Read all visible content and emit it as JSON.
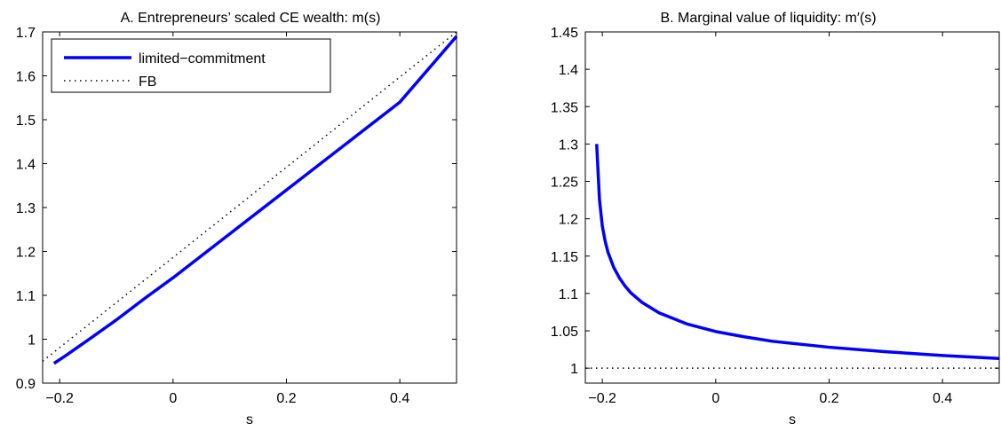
{
  "chart_data": [
    {
      "type": "line",
      "title": "A. Entrepreneurs’ scaled CE wealth: m(s)",
      "xlabel": "s",
      "ylabel": "",
      "xlim": [
        -0.23,
        0.5
      ],
      "ylim": [
        0.9,
        1.7
      ],
      "xticks": [
        -0.2,
        0,
        0.2,
        0.4
      ],
      "xtick_labels": [
        "−0.2",
        "0",
        "0.2",
        "0.4"
      ],
      "yticks": [
        0.9,
        1.0,
        1.1,
        1.2,
        1.3,
        1.4,
        1.5,
        1.6,
        1.7
      ],
      "ytick_labels": [
        "0.9",
        "1",
        "1.1",
        "1.2",
        "1.3",
        "1.4",
        "1.5",
        "1.6",
        "1.7"
      ],
      "grid": false,
      "legend": "top-left",
      "series": [
        {
          "name": "limited−commitment",
          "color": "#0000ff",
          "style": "solid",
          "x": [
            -0.21,
            -0.19,
            -0.15,
            -0.1,
            -0.05,
            0.0,
            0.1,
            0.2,
            0.3,
            0.4,
            0.5
          ],
          "y": [
            0.945,
            0.962,
            0.998,
            1.044,
            1.093,
            1.14,
            1.24,
            1.34,
            1.44,
            1.54,
            1.69
          ]
        },
        {
          "name": "FB",
          "color": "#000000",
          "style": "dotted",
          "x": [
            -0.23,
            0.5
          ],
          "y": [
            0.95,
            1.7
          ]
        }
      ]
    },
    {
      "type": "line",
      "title": "B. Marginal value of liquidity: m′(s)",
      "xlabel": "s",
      "ylabel": "",
      "xlim": [
        -0.23,
        0.5
      ],
      "ylim": [
        0.98,
        1.45
      ],
      "xticks": [
        -0.2,
        0,
        0.2,
        0.4
      ],
      "xtick_labels": [
        "−0.2",
        "0",
        "0.2",
        "0.4"
      ],
      "yticks": [
        1.0,
        1.05,
        1.1,
        1.15,
        1.2,
        1.25,
        1.3,
        1.35,
        1.4,
        1.45
      ],
      "ytick_labels": [
        "1",
        "1.05",
        "1.1",
        "1.15",
        "1.2",
        "1.25",
        "1.3",
        "1.35",
        "1.4",
        "1.45"
      ],
      "grid": false,
      "series": [
        {
          "color": "#0000ff",
          "style": "solid",
          "x": [
            -0.21,
            -0.205,
            -0.2,
            -0.195,
            -0.19,
            -0.18,
            -0.17,
            -0.16,
            -0.15,
            -0.13,
            -0.1,
            -0.05,
            0.0,
            0.05,
            0.1,
            0.15,
            0.2,
            0.3,
            0.4,
            0.5
          ],
          "y": [
            1.3,
            1.225,
            1.19,
            1.17,
            1.155,
            1.135,
            1.121,
            1.11,
            1.101,
            1.088,
            1.074,
            1.059,
            1.049,
            1.042,
            1.036,
            1.032,
            1.028,
            1.022,
            1.017,
            1.013
          ]
        },
        {
          "color": "#000000",
          "style": "dotted",
          "x": [
            -0.23,
            0.5
          ],
          "y": [
            1.0,
            1.0
          ]
        }
      ]
    }
  ]
}
